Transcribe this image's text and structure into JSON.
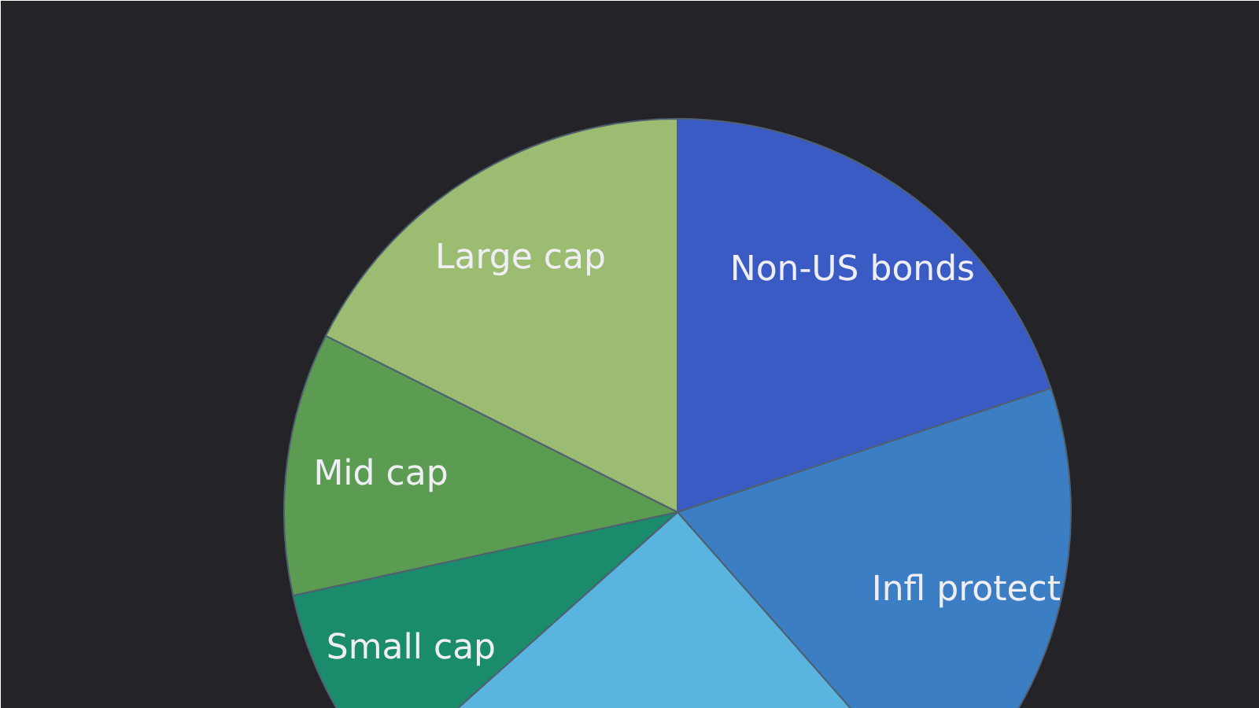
{
  "chart_data": {
    "type": "pie",
    "categories": [
      "Non-US bonds",
      "Infl protect",
      null,
      "Small cap",
      "Mid cap",
      "Large cap"
    ],
    "values": [
      19.9,
      18.6,
      24.9,
      8.2,
      10.8,
      17.6
    ],
    "colors": [
      "#3a5ac4",
      "#3c7ec4",
      "#5ab4e0",
      "#1a8c6c",
      "#5c9c52",
      "#9cbc72"
    ]
  }
}
